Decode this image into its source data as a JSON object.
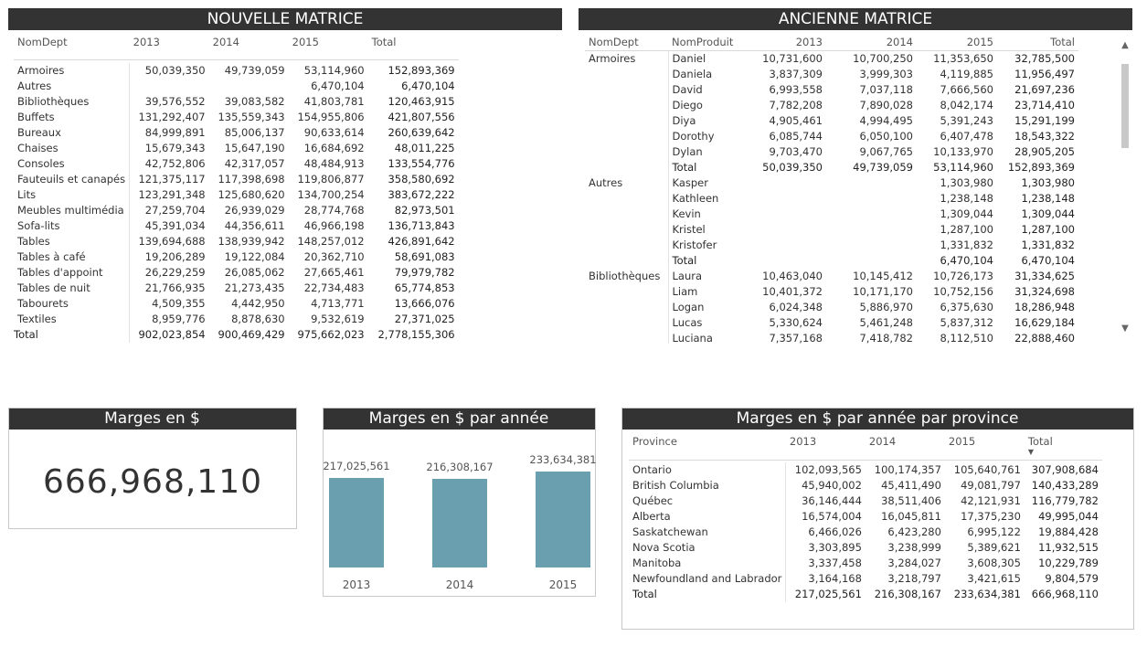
{
  "nouvelle": {
    "title": "NOUVELLE MATRICE",
    "headers": [
      "NomDept",
      "2013",
      "2014",
      "2015",
      "Total"
    ],
    "rows": [
      [
        "Armoires",
        "50,039,350",
        "49,739,059",
        "53,114,960",
        "152,893,369"
      ],
      [
        "Autres",
        "",
        "",
        "6,470,104",
        "6,470,104"
      ],
      [
        "Bibliothèques",
        "39,576,552",
        "39,083,582",
        "41,803,781",
        "120,463,915"
      ],
      [
        "Buffets",
        "131,292,407",
        "135,559,343",
        "154,955,806",
        "421,807,556"
      ],
      [
        "Bureaux",
        "84,999,891",
        "85,006,137",
        "90,633,614",
        "260,639,642"
      ],
      [
        "Chaises",
        "15,679,343",
        "15,647,190",
        "16,684,692",
        "48,011,225"
      ],
      [
        "Consoles",
        "42,752,806",
        "42,317,057",
        "48,484,913",
        "133,554,776"
      ],
      [
        "Fauteuils et canapés",
        "121,375,117",
        "117,398,698",
        "119,806,877",
        "358,580,692"
      ],
      [
        "Lits",
        "123,291,348",
        "125,680,620",
        "134,700,254",
        "383,672,222"
      ],
      [
        "Meubles multimédia",
        "27,259,704",
        "26,939,029",
        "28,774,768",
        "82,973,501"
      ],
      [
        "Sofa-lits",
        "45,391,034",
        "44,356,611",
        "46,966,198",
        "136,713,843"
      ],
      [
        "Tables",
        "139,694,688",
        "138,939,942",
        "148,257,012",
        "426,891,642"
      ],
      [
        "Tables à café",
        "19,206,289",
        "19,122,084",
        "20,362,710",
        "58,691,083"
      ],
      [
        "Tables d'appoint",
        "26,229,259",
        "26,085,062",
        "27,665,461",
        "79,979,782"
      ],
      [
        "Tables de nuit",
        "21,766,935",
        "21,273,435",
        "22,734,483",
        "65,774,853"
      ],
      [
        "Tabourets",
        "4,509,355",
        "4,442,950",
        "4,713,771",
        "13,666,076"
      ],
      [
        "Textiles",
        "8,959,776",
        "8,878,630",
        "9,532,619",
        "27,371,025"
      ]
    ],
    "total": [
      "Total",
      "902,023,854",
      "900,469,429",
      "975,662,023",
      "2,778,155,306"
    ]
  },
  "ancienne": {
    "title": "ANCIENNE MATRICE",
    "headers": [
      "NomDept",
      "NomProduit",
      "2013",
      "2014",
      "2015",
      "Total"
    ],
    "rows": [
      [
        "Armoires",
        "Daniel",
        "10,731,600",
        "10,700,250",
        "11,353,650",
        "32,785,500",
        "n"
      ],
      [
        "",
        "Daniela",
        "3,837,309",
        "3,999,303",
        "4,119,885",
        "11,956,497",
        "n"
      ],
      [
        "",
        "David",
        "6,993,558",
        "7,037,118",
        "7,666,560",
        "21,697,236",
        "n"
      ],
      [
        "",
        "Diego",
        "7,782,208",
        "7,890,028",
        "8,042,174",
        "23,714,410",
        "n"
      ],
      [
        "",
        "Diya",
        "4,905,461",
        "4,994,495",
        "5,391,243",
        "15,291,199",
        "n"
      ],
      [
        "",
        "Dorothy",
        "6,085,744",
        "6,050,100",
        "6,407,478",
        "18,543,322",
        "n"
      ],
      [
        "",
        "Dylan",
        "9,703,470",
        "9,067,765",
        "10,133,970",
        "28,905,205",
        "n"
      ],
      [
        "",
        "Total",
        "50,039,350",
        "49,739,059",
        "53,114,960",
        "152,893,369",
        "t"
      ],
      [
        "Autres",
        "Kasper",
        "",
        "",
        "1,303,980",
        "1,303,980",
        "n"
      ],
      [
        "",
        "Kathleen",
        "",
        "",
        "1,238,148",
        "1,238,148",
        "n"
      ],
      [
        "",
        "Kevin",
        "",
        "",
        "1,309,044",
        "1,309,044",
        "n"
      ],
      [
        "",
        "Kristel",
        "",
        "",
        "1,287,100",
        "1,287,100",
        "n"
      ],
      [
        "",
        "Kristofer",
        "",
        "",
        "1,331,832",
        "1,331,832",
        "n"
      ],
      [
        "",
        "Total",
        "",
        "",
        "6,470,104",
        "6,470,104",
        "t"
      ],
      [
        "Bibliothèques",
        "Laura",
        "10,463,040",
        "10,145,412",
        "10,726,173",
        "31,334,625",
        "n"
      ],
      [
        "",
        "Liam",
        "10,401,372",
        "10,171,170",
        "10,752,156",
        "31,324,698",
        "n"
      ],
      [
        "",
        "Logan",
        "6,024,348",
        "5,886,970",
        "6,375,630",
        "18,286,948",
        "n"
      ],
      [
        "",
        "Lucas",
        "5,330,624",
        "5,461,248",
        "5,837,312",
        "16,629,184",
        "n"
      ],
      [
        "",
        "Luciana",
        "7,357,168",
        "7,418,782",
        "8,112,510",
        "22,888,460",
        "n"
      ]
    ]
  },
  "kpi": {
    "title": "Marges en $",
    "value": "666,968,110"
  },
  "chart_data": {
    "type": "bar",
    "title": "Marges en $ par année",
    "categories": [
      "2013",
      "2014",
      "2015"
    ],
    "values": [
      217025561,
      216308167,
      233634381
    ],
    "labels": [
      "217,025,561",
      "216,308,167",
      "233,634,381"
    ],
    "ylim": [
      0,
      233634381
    ]
  },
  "province": {
    "title": "Marges en $ par année par province",
    "headers": [
      "Province",
      "2013",
      "2014",
      "2015",
      "Total"
    ],
    "rows": [
      [
        "Ontario",
        "102,093,565",
        "100,174,357",
        "105,640,761",
        "307,908,684"
      ],
      [
        "British Columbia",
        "45,940,002",
        "45,411,490",
        "49,081,797",
        "140,433,289"
      ],
      [
        "Québec",
        "36,146,444",
        "38,511,406",
        "42,121,931",
        "116,779,782"
      ],
      [
        "Alberta",
        "16,574,004",
        "16,045,811",
        "17,375,230",
        "49,995,044"
      ],
      [
        "Saskatchewan",
        "6,466,026",
        "6,423,280",
        "6,995,122",
        "19,884,428"
      ],
      [
        "Nova Scotia",
        "3,303,895",
        "3,238,999",
        "5,389,621",
        "11,932,515"
      ],
      [
        "Manitoba",
        "3,337,458",
        "3,284,027",
        "3,608,305",
        "10,229,789"
      ],
      [
        "Newfoundland and Labrador",
        "3,164,168",
        "3,218,797",
        "3,421,615",
        "9,804,579"
      ]
    ],
    "total": [
      "Total",
      "217,025,561",
      "216,308,167",
      "233,634,381",
      "666,968,110"
    ]
  },
  "icons": {
    "scroll_up": "▲",
    "scroll_down": "▼",
    "sort_desc": "▼"
  }
}
